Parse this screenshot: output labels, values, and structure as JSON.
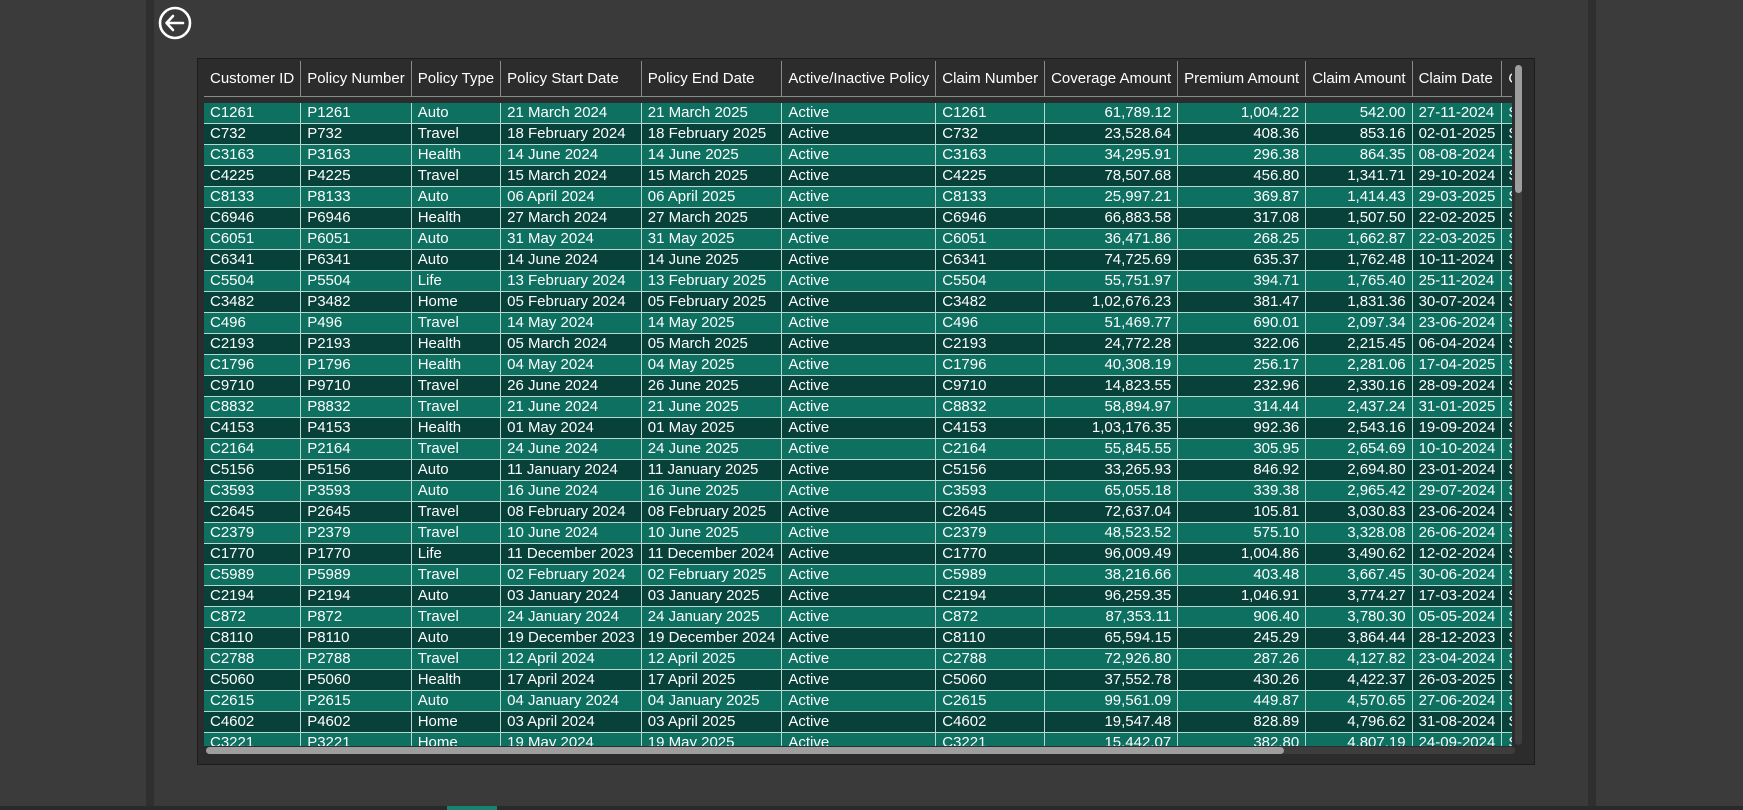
{
  "nav": {
    "back_icon": "arrow-left-circle-icon"
  },
  "colors": {
    "row_light": "#0e7060",
    "row_dark": "#07413a",
    "accent": "#14846f",
    "background": "#3a3a3a"
  },
  "table": {
    "columns": [
      "Customer ID",
      "Policy Number",
      "Policy Type",
      "Policy Start Date",
      "Policy End Date",
      "Active/Inactive Policy",
      "Claim Number",
      "Coverage Amount",
      "Premium Amount",
      "Claim Amount",
      "Claim Date",
      "C"
    ],
    "rows": [
      [
        "C1261",
        "P1261",
        "Auto",
        "21 March 2024",
        "21 March 2025",
        "Active",
        "C1261",
        "61,789.12",
        "1,004.22",
        "542.00",
        "27-11-2024",
        "S"
      ],
      [
        "C732",
        "P732",
        "Travel",
        "18 February 2024",
        "18 February 2025",
        "Active",
        "C732",
        "23,528.64",
        "408.36",
        "853.16",
        "02-01-2025",
        "S"
      ],
      [
        "C3163",
        "P3163",
        "Health",
        "14 June 2024",
        "14 June 2025",
        "Active",
        "C3163",
        "34,295.91",
        "296.38",
        "864.35",
        "08-08-2024",
        "S"
      ],
      [
        "C4225",
        "P4225",
        "Travel",
        "15 March 2024",
        "15 March 2025",
        "Active",
        "C4225",
        "78,507.68",
        "456.80",
        "1,341.71",
        "29-10-2024",
        "S"
      ],
      [
        "C8133",
        "P8133",
        "Auto",
        "06 April 2024",
        "06 April 2025",
        "Active",
        "C8133",
        "25,997.21",
        "369.87",
        "1,414.43",
        "29-03-2025",
        "S"
      ],
      [
        "C6946",
        "P6946",
        "Health",
        "27 March 2024",
        "27 March 2025",
        "Active",
        "C6946",
        "66,883.58",
        "317.08",
        "1,507.50",
        "22-02-2025",
        "S"
      ],
      [
        "C6051",
        "P6051",
        "Auto",
        "31 May 2024",
        "31 May 2025",
        "Active",
        "C6051",
        "36,471.86",
        "268.25",
        "1,662.87",
        "22-03-2025",
        "S"
      ],
      [
        "C6341",
        "P6341",
        "Auto",
        "14 June 2024",
        "14 June 2025",
        "Active",
        "C6341",
        "74,725.69",
        "635.37",
        "1,762.48",
        "10-11-2024",
        "S"
      ],
      [
        "C5504",
        "P5504",
        "Life",
        "13 February 2024",
        "13 February 2025",
        "Active",
        "C5504",
        "55,751.97",
        "394.71",
        "1,765.40",
        "25-11-2024",
        "S"
      ],
      [
        "C3482",
        "P3482",
        "Home",
        "05 February 2024",
        "05 February 2025",
        "Active",
        "C3482",
        "1,02,676.23",
        "381.47",
        "1,831.36",
        "30-07-2024",
        "S"
      ],
      [
        "C496",
        "P496",
        "Travel",
        "14 May 2024",
        "14 May 2025",
        "Active",
        "C496",
        "51,469.77",
        "690.01",
        "2,097.34",
        "23-06-2024",
        "S"
      ],
      [
        "C2193",
        "P2193",
        "Health",
        "05 March 2024",
        "05 March 2025",
        "Active",
        "C2193",
        "24,772.28",
        "322.06",
        "2,215.45",
        "06-04-2024",
        "S"
      ],
      [
        "C1796",
        "P1796",
        "Health",
        "04 May 2024",
        "04 May 2025",
        "Active",
        "C1796",
        "40,308.19",
        "256.17",
        "2,281.06",
        "17-04-2025",
        "S"
      ],
      [
        "C9710",
        "P9710",
        "Travel",
        "26 June 2024",
        "26 June 2025",
        "Active",
        "C9710",
        "14,823.55",
        "232.96",
        "2,330.16",
        "28-09-2024",
        "S"
      ],
      [
        "C8832",
        "P8832",
        "Travel",
        "21 June 2024",
        "21 June 2025",
        "Active",
        "C8832",
        "58,894.97",
        "314.44",
        "2,437.24",
        "31-01-2025",
        "S"
      ],
      [
        "C4153",
        "P4153",
        "Health",
        "01 May 2024",
        "01 May 2025",
        "Active",
        "C4153",
        "1,03,176.35",
        "992.36",
        "2,543.16",
        "19-09-2024",
        "S"
      ],
      [
        "C2164",
        "P2164",
        "Travel",
        "24 June 2024",
        "24 June 2025",
        "Active",
        "C2164",
        "55,845.55",
        "305.95",
        "2,654.69",
        "10-10-2024",
        "S"
      ],
      [
        "C5156",
        "P5156",
        "Auto",
        "11 January 2024",
        "11 January 2025",
        "Active",
        "C5156",
        "33,265.93",
        "846.92",
        "2,694.80",
        "23-01-2024",
        "S"
      ],
      [
        "C3593",
        "P3593",
        "Auto",
        "16 June 2024",
        "16 June 2025",
        "Active",
        "C3593",
        "65,055.18",
        "339.38",
        "2,965.42",
        "29-07-2024",
        "S"
      ],
      [
        "C2645",
        "P2645",
        "Travel",
        "08 February 2024",
        "08 February 2025",
        "Active",
        "C2645",
        "72,637.04",
        "105.81",
        "3,030.83",
        "23-06-2024",
        "S"
      ],
      [
        "C2379",
        "P2379",
        "Travel",
        "10 June 2024",
        "10 June 2025",
        "Active",
        "C2379",
        "48,523.52",
        "575.10",
        "3,328.08",
        "26-06-2024",
        "S"
      ],
      [
        "C1770",
        "P1770",
        "Life",
        "11 December 2023",
        "11 December 2024",
        "Active",
        "C1770",
        "96,009.49",
        "1,004.86",
        "3,490.62",
        "12-02-2024",
        "S"
      ],
      [
        "C5989",
        "P5989",
        "Travel",
        "02 February 2024",
        "02 February 2025",
        "Active",
        "C5989",
        "38,216.66",
        "403.48",
        "3,667.45",
        "30-06-2024",
        "S"
      ],
      [
        "C2194",
        "P2194",
        "Auto",
        "03 January 2024",
        "03 January 2025",
        "Active",
        "C2194",
        "96,259.35",
        "1,046.91",
        "3,774.27",
        "17-03-2024",
        "S"
      ],
      [
        "C872",
        "P872",
        "Travel",
        "24 January 2024",
        "24 January 2025",
        "Active",
        "C872",
        "87,353.11",
        "906.40",
        "3,780.30",
        "05-05-2024",
        "S"
      ],
      [
        "C8110",
        "P8110",
        "Auto",
        "19 December 2023",
        "19 December 2024",
        "Active",
        "C8110",
        "65,594.15",
        "245.29",
        "3,864.44",
        "28-12-2023",
        "S"
      ],
      [
        "C2788",
        "P2788",
        "Travel",
        "12 April 2024",
        "12 April 2025",
        "Active",
        "C2788",
        "72,926.80",
        "287.26",
        "4,127.82",
        "23-04-2024",
        "S"
      ],
      [
        "C5060",
        "P5060",
        "Health",
        "17 April 2024",
        "17 April 2025",
        "Active",
        "C5060",
        "37,552.78",
        "430.26",
        "4,422.37",
        "26-03-2025",
        "S"
      ],
      [
        "C2615",
        "P2615",
        "Auto",
        "04 January 2024",
        "04 January 2025",
        "Active",
        "C2615",
        "99,561.09",
        "449.87",
        "4,570.65",
        "27-06-2024",
        "S"
      ],
      [
        "C4602",
        "P4602",
        "Home",
        "03 April 2024",
        "03 April 2025",
        "Active",
        "C4602",
        "19,547.48",
        "828.89",
        "4,796.62",
        "31-08-2024",
        "S"
      ],
      [
        "C3221",
        "P3221",
        "Home",
        "19 May 2024",
        "19 May 2025",
        "Active",
        "C3221",
        "15,442.07",
        "382.80",
        "4,807.19",
        "24-09-2024",
        "S"
      ]
    ]
  }
}
